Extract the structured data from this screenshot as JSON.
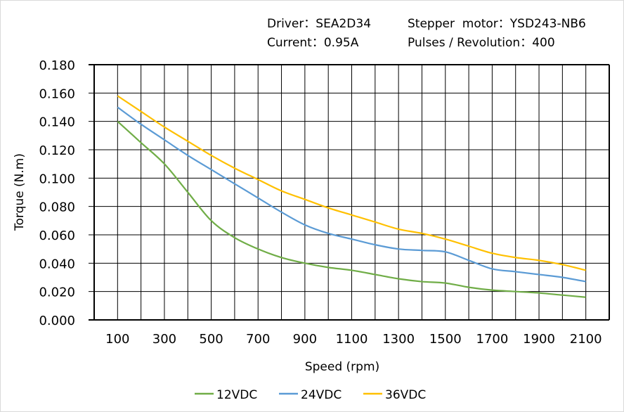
{
  "header": {
    "driver": "Driver：SEA2D34",
    "motor": "Stepper  motor：YSD243-NB6",
    "current": "Current：0.95A",
    "pulses": "Pulses / Revolution：400"
  },
  "chart_data": {
    "type": "line",
    "title": "",
    "xlabel": "Speed  (rpm)",
    "ylabel": "Torque (N.m)",
    "xlim": [
      0,
      2200
    ],
    "ylim": [
      0,
      0.18
    ],
    "xticks": [
      100,
      300,
      500,
      700,
      900,
      1100,
      1300,
      1500,
      1700,
      1900,
      2100
    ],
    "yticks": [
      "0.000",
      "0.020",
      "0.040",
      "0.060",
      "0.080",
      "0.100",
      "0.120",
      "0.140",
      "0.160",
      "0.180"
    ],
    "grid": true,
    "grid_x_step": 100,
    "legend": "bottom",
    "x": [
      100,
      200,
      300,
      400,
      500,
      600,
      700,
      800,
      900,
      1000,
      1100,
      1200,
      1300,
      1400,
      1500,
      1600,
      1700,
      1800,
      1900,
      2000,
      2100
    ],
    "series": [
      {
        "name": "12VDC",
        "color": "#70ad47",
        "values": [
          0.14,
          0.125,
          0.11,
          0.09,
          0.07,
          0.058,
          0.05,
          0.044,
          0.04,
          0.037,
          0.035,
          0.032,
          0.029,
          0.027,
          0.026,
          0.023,
          0.021,
          0.02,
          0.019,
          0.0175,
          0.016
        ]
      },
      {
        "name": "24VDC",
        "color": "#5b9bd5",
        "values": [
          0.15,
          0.138,
          0.127,
          0.116,
          0.106,
          0.096,
          0.086,
          0.076,
          0.067,
          0.061,
          0.057,
          0.053,
          0.05,
          0.049,
          0.048,
          0.042,
          0.036,
          0.034,
          0.032,
          0.03,
          0.027
        ]
      },
      {
        "name": "36VDC",
        "color": "#ffc000",
        "values": [
          0.158,
          0.147,
          0.136,
          0.126,
          0.116,
          0.107,
          0.099,
          0.091,
          0.085,
          0.079,
          0.074,
          0.069,
          0.064,
          0.061,
          0.057,
          0.052,
          0.047,
          0.044,
          0.042,
          0.039,
          0.035
        ]
      }
    ]
  }
}
